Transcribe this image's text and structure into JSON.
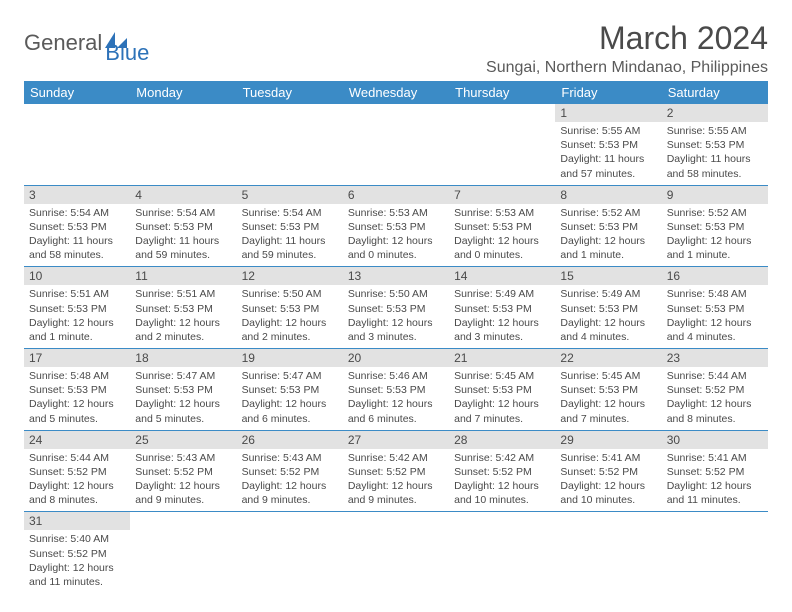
{
  "logo": {
    "general": "General",
    "blue": "Blue"
  },
  "title": "March 2024",
  "location": "Sungai, Northern Mindanao, Philippines",
  "colors": {
    "header_bg": "#3b8bc6",
    "header_text": "#ffffff",
    "daynum_bg": "#e2e2e2",
    "border": "#3b8bc6",
    "text": "#4a4a4a",
    "logo_gray": "#5a5a5a",
    "logo_blue": "#2d72b8"
  },
  "day_headers": [
    "Sunday",
    "Monday",
    "Tuesday",
    "Wednesday",
    "Thursday",
    "Friday",
    "Saturday"
  ],
  "weeks": [
    [
      null,
      null,
      null,
      null,
      null,
      {
        "num": "1",
        "sunrise": "Sunrise: 5:55 AM",
        "sunset": "Sunset: 5:53 PM",
        "daylight": "Daylight: 11 hours and 57 minutes."
      },
      {
        "num": "2",
        "sunrise": "Sunrise: 5:55 AM",
        "sunset": "Sunset: 5:53 PM",
        "daylight": "Daylight: 11 hours and 58 minutes."
      }
    ],
    [
      {
        "num": "3",
        "sunrise": "Sunrise: 5:54 AM",
        "sunset": "Sunset: 5:53 PM",
        "daylight": "Daylight: 11 hours and 58 minutes."
      },
      {
        "num": "4",
        "sunrise": "Sunrise: 5:54 AM",
        "sunset": "Sunset: 5:53 PM",
        "daylight": "Daylight: 11 hours and 59 minutes."
      },
      {
        "num": "5",
        "sunrise": "Sunrise: 5:54 AM",
        "sunset": "Sunset: 5:53 PM",
        "daylight": "Daylight: 11 hours and 59 minutes."
      },
      {
        "num": "6",
        "sunrise": "Sunrise: 5:53 AM",
        "sunset": "Sunset: 5:53 PM",
        "daylight": "Daylight: 12 hours and 0 minutes."
      },
      {
        "num": "7",
        "sunrise": "Sunrise: 5:53 AM",
        "sunset": "Sunset: 5:53 PM",
        "daylight": "Daylight: 12 hours and 0 minutes."
      },
      {
        "num": "8",
        "sunrise": "Sunrise: 5:52 AM",
        "sunset": "Sunset: 5:53 PM",
        "daylight": "Daylight: 12 hours and 1 minute."
      },
      {
        "num": "9",
        "sunrise": "Sunrise: 5:52 AM",
        "sunset": "Sunset: 5:53 PM",
        "daylight": "Daylight: 12 hours and 1 minute."
      }
    ],
    [
      {
        "num": "10",
        "sunrise": "Sunrise: 5:51 AM",
        "sunset": "Sunset: 5:53 PM",
        "daylight": "Daylight: 12 hours and 1 minute."
      },
      {
        "num": "11",
        "sunrise": "Sunrise: 5:51 AM",
        "sunset": "Sunset: 5:53 PM",
        "daylight": "Daylight: 12 hours and 2 minutes."
      },
      {
        "num": "12",
        "sunrise": "Sunrise: 5:50 AM",
        "sunset": "Sunset: 5:53 PM",
        "daylight": "Daylight: 12 hours and 2 minutes."
      },
      {
        "num": "13",
        "sunrise": "Sunrise: 5:50 AM",
        "sunset": "Sunset: 5:53 PM",
        "daylight": "Daylight: 12 hours and 3 minutes."
      },
      {
        "num": "14",
        "sunrise": "Sunrise: 5:49 AM",
        "sunset": "Sunset: 5:53 PM",
        "daylight": "Daylight: 12 hours and 3 minutes."
      },
      {
        "num": "15",
        "sunrise": "Sunrise: 5:49 AM",
        "sunset": "Sunset: 5:53 PM",
        "daylight": "Daylight: 12 hours and 4 minutes."
      },
      {
        "num": "16",
        "sunrise": "Sunrise: 5:48 AM",
        "sunset": "Sunset: 5:53 PM",
        "daylight": "Daylight: 12 hours and 4 minutes."
      }
    ],
    [
      {
        "num": "17",
        "sunrise": "Sunrise: 5:48 AM",
        "sunset": "Sunset: 5:53 PM",
        "daylight": "Daylight: 12 hours and 5 minutes."
      },
      {
        "num": "18",
        "sunrise": "Sunrise: 5:47 AM",
        "sunset": "Sunset: 5:53 PM",
        "daylight": "Daylight: 12 hours and 5 minutes."
      },
      {
        "num": "19",
        "sunrise": "Sunrise: 5:47 AM",
        "sunset": "Sunset: 5:53 PM",
        "daylight": "Daylight: 12 hours and 6 minutes."
      },
      {
        "num": "20",
        "sunrise": "Sunrise: 5:46 AM",
        "sunset": "Sunset: 5:53 PM",
        "daylight": "Daylight: 12 hours and 6 minutes."
      },
      {
        "num": "21",
        "sunrise": "Sunrise: 5:45 AM",
        "sunset": "Sunset: 5:53 PM",
        "daylight": "Daylight: 12 hours and 7 minutes."
      },
      {
        "num": "22",
        "sunrise": "Sunrise: 5:45 AM",
        "sunset": "Sunset: 5:53 PM",
        "daylight": "Daylight: 12 hours and 7 minutes."
      },
      {
        "num": "23",
        "sunrise": "Sunrise: 5:44 AM",
        "sunset": "Sunset: 5:52 PM",
        "daylight": "Daylight: 12 hours and 8 minutes."
      }
    ],
    [
      {
        "num": "24",
        "sunrise": "Sunrise: 5:44 AM",
        "sunset": "Sunset: 5:52 PM",
        "daylight": "Daylight: 12 hours and 8 minutes."
      },
      {
        "num": "25",
        "sunrise": "Sunrise: 5:43 AM",
        "sunset": "Sunset: 5:52 PM",
        "daylight": "Daylight: 12 hours and 9 minutes."
      },
      {
        "num": "26",
        "sunrise": "Sunrise: 5:43 AM",
        "sunset": "Sunset: 5:52 PM",
        "daylight": "Daylight: 12 hours and 9 minutes."
      },
      {
        "num": "27",
        "sunrise": "Sunrise: 5:42 AM",
        "sunset": "Sunset: 5:52 PM",
        "daylight": "Daylight: 12 hours and 9 minutes."
      },
      {
        "num": "28",
        "sunrise": "Sunrise: 5:42 AM",
        "sunset": "Sunset: 5:52 PM",
        "daylight": "Daylight: 12 hours and 10 minutes."
      },
      {
        "num": "29",
        "sunrise": "Sunrise: 5:41 AM",
        "sunset": "Sunset: 5:52 PM",
        "daylight": "Daylight: 12 hours and 10 minutes."
      },
      {
        "num": "30",
        "sunrise": "Sunrise: 5:41 AM",
        "sunset": "Sunset: 5:52 PM",
        "daylight": "Daylight: 12 hours and 11 minutes."
      }
    ],
    [
      {
        "num": "31",
        "sunrise": "Sunrise: 5:40 AM",
        "sunset": "Sunset: 5:52 PM",
        "daylight": "Daylight: 12 hours and 11 minutes."
      },
      null,
      null,
      null,
      null,
      null,
      null
    ]
  ]
}
